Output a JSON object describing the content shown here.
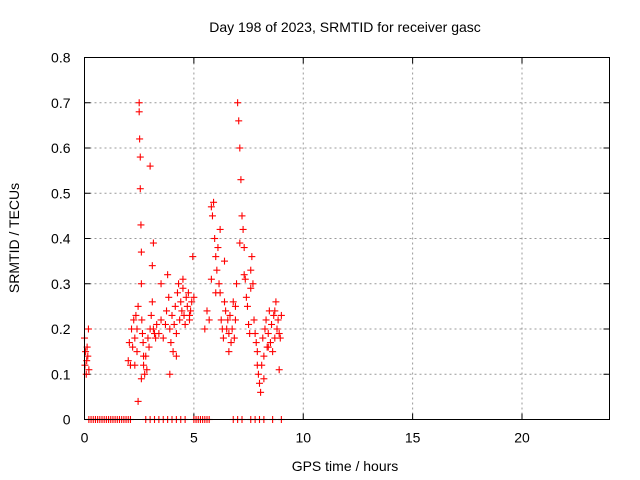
{
  "chart_data": {
    "type": "scatter",
    "title": "Day 198 of 2023, SRMTID for receiver gasc",
    "xlabel": "GPS time / hours",
    "ylabel": "SRMTID / TECUs",
    "xlim": [
      0,
      24
    ],
    "ylim": [
      0,
      0.8
    ],
    "xticks": [
      0,
      5,
      10,
      15,
      20
    ],
    "yticks": [
      0,
      0.1,
      0.2,
      0.3,
      0.4,
      0.5,
      0.6,
      0.7,
      0.8
    ],
    "xtick_labels": [
      "0",
      "5",
      "10",
      "15",
      "20"
    ],
    "ytick_labels": [
      "0",
      "0.1",
      "0.2",
      "0.3",
      "0.4",
      "0.5",
      "0.6",
      "0.7",
      "0.8"
    ],
    "grid": true,
    "marker": "+",
    "color": "#ff0000",
    "series": [
      {
        "name": "SRMTID",
        "x": [
          0.0,
          0.02,
          0.05,
          0.08,
          0.1,
          0.12,
          0.15,
          0.18,
          0.2,
          2.0,
          2.05,
          2.1,
          2.15,
          2.2,
          2.25,
          2.3,
          2.35,
          2.4,
          2.45,
          2.5,
          2.5,
          2.52,
          2.55,
          2.55,
          2.58,
          2.6,
          2.6,
          2.62,
          2.65,
          2.68,
          2.7,
          2.75,
          2.8,
          2.85,
          2.9,
          2.95,
          3.0,
          3.05,
          3.1,
          3.1,
          3.15,
          3.2,
          3.25,
          3.3,
          3.4,
          3.5,
          3.6,
          3.7,
          3.75,
          3.8,
          3.85,
          3.9,
          3.95,
          4.0,
          4.05,
          4.1,
          4.15,
          4.2,
          4.25,
          4.3,
          4.35,
          4.4,
          4.45,
          4.5,
          4.55,
          4.6,
          4.65,
          4.7,
          4.75,
          4.8,
          4.85,
          4.9,
          4.95,
          5.0,
          5.5,
          5.6,
          5.7,
          5.8,
          5.85,
          5.9,
          5.95,
          6.0,
          6.05,
          6.1,
          6.15,
          6.2,
          6.25,
          6.3,
          6.35,
          6.4,
          6.45,
          6.5,
          6.55,
          6.6,
          6.65,
          6.7,
          6.75,
          6.8,
          6.85,
          6.9,
          6.95,
          7.0,
          7.05,
          7.1,
          7.15,
          7.2,
          7.25,
          7.3,
          7.35,
          7.4,
          7.45,
          7.5,
          7.55,
          7.6,
          7.65,
          7.7,
          7.75,
          7.8,
          7.85,
          7.9,
          7.95,
          8.0,
          8.05,
          8.1,
          8.15,
          8.2,
          8.25,
          8.3,
          8.35,
          8.4,
          8.45,
          8.5,
          8.55,
          8.6,
          8.65,
          8.7,
          8.75,
          8.8,
          8.85,
          8.9,
          8.95,
          9.0,
          2.3,
          2.4,
          2.45,
          2.6,
          2.7,
          3.0,
          3.15,
          3.5,
          3.9,
          4.2,
          4.5,
          4.8,
          5.8,
          6.0,
          6.2,
          6.4,
          6.6,
          6.9,
          7.1,
          7.3,
          7.6,
          7.9,
          8.2,
          8.4,
          8.7,
          8.9,
          0.2,
          0.3,
          0.4,
          0.5,
          0.6,
          0.7,
          0.8,
          0.9,
          1.0,
          1.1,
          1.2,
          1.3,
          1.4,
          1.5,
          1.6,
          1.7,
          1.8,
          1.9,
          2.0,
          2.1,
          2.8,
          3.0,
          3.2,
          3.4,
          3.6,
          3.8,
          4.0,
          4.2,
          4.4,
          4.6,
          5.0,
          5.1,
          5.2,
          5.3,
          5.4,
          5.5,
          5.6,
          5.7,
          6.8,
          7.0,
          7.2,
          7.6,
          7.8,
          8.0,
          8.2,
          8.6,
          9.0
        ],
        "y": [
          0.18,
          0.12,
          0.15,
          0.1,
          0.13,
          0.16,
          0.14,
          0.2,
          0.11,
          0.13,
          0.17,
          0.12,
          0.2,
          0.16,
          0.22,
          0.18,
          0.23,
          0.15,
          0.25,
          0.7,
          0.68,
          0.62,
          0.58,
          0.51,
          0.43,
          0.37,
          0.3,
          0.22,
          0.19,
          0.17,
          0.12,
          0.1,
          0.14,
          0.11,
          0.18,
          0.16,
          0.2,
          0.23,
          0.26,
          0.34,
          0.2,
          0.19,
          0.18,
          0.21,
          0.19,
          0.22,
          0.18,
          0.21,
          0.24,
          0.32,
          0.27,
          0.2,
          0.17,
          0.23,
          0.15,
          0.21,
          0.25,
          0.19,
          0.28,
          0.3,
          0.22,
          0.26,
          0.24,
          0.29,
          0.23,
          0.21,
          0.27,
          0.25,
          0.28,
          0.22,
          0.24,
          0.26,
          0.36,
          0.27,
          0.2,
          0.24,
          0.22,
          0.31,
          0.45,
          0.48,
          0.4,
          0.36,
          0.33,
          0.38,
          0.3,
          0.28,
          0.22,
          0.2,
          0.18,
          0.26,
          0.24,
          0.2,
          0.22,
          0.19,
          0.23,
          0.17,
          0.2,
          0.26,
          0.18,
          0.22,
          0.3,
          0.7,
          0.66,
          0.6,
          0.53,
          0.45,
          0.42,
          0.38,
          0.31,
          0.27,
          0.25,
          0.21,
          0.19,
          0.33,
          0.36,
          0.3,
          0.22,
          0.19,
          0.17,
          0.15,
          0.1,
          0.08,
          0.06,
          0.12,
          0.18,
          0.14,
          0.2,
          0.22,
          0.16,
          0.19,
          0.24,
          0.17,
          0.21,
          0.15,
          0.23,
          0.18,
          0.26,
          0.2,
          0.22,
          0.19,
          0.18,
          0.23,
          0.12,
          0.2,
          0.04,
          0.09,
          0.14,
          0.56,
          0.39,
          0.3,
          0.1,
          0.14,
          0.31,
          0.23,
          0.47,
          0.28,
          0.42,
          0.35,
          0.15,
          0.25,
          0.39,
          0.32,
          0.29,
          0.12,
          0.09,
          0.16,
          0.24,
          0.11,
          0,
          0,
          0,
          0,
          0,
          0,
          0,
          0,
          0,
          0,
          0,
          0,
          0,
          0,
          0,
          0,
          0,
          0,
          0,
          0,
          0,
          0,
          0,
          0,
          0,
          0,
          0,
          0,
          0,
          0,
          0,
          0,
          0,
          0,
          0,
          0,
          0,
          0,
          0,
          0,
          0,
          0,
          0,
          0,
          0,
          0,
          0
        ]
      }
    ]
  }
}
